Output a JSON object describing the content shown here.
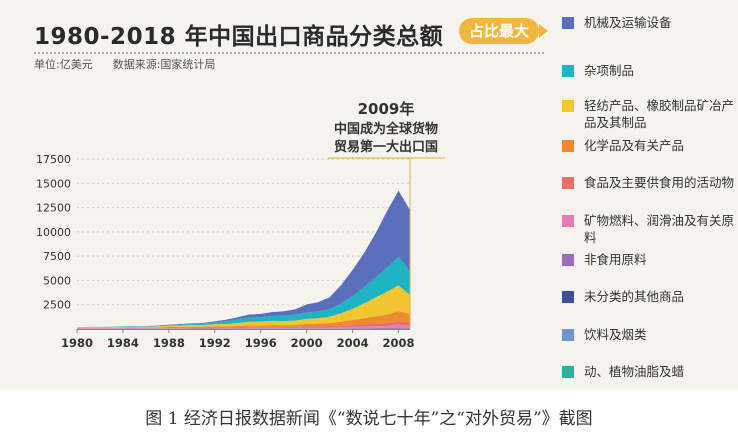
{
  "header": {
    "title": "1980-2018 年中国出口商品分类总额",
    "unit": "单位:亿美元",
    "source": "数据来源:国家统计局",
    "badge": "占比最大"
  },
  "annotation": {
    "line1": "2009年",
    "line2": "中国成为全球货物",
    "line3": "贸易第一大出口国"
  },
  "caption": "图 1  经济日报数据新闻《“数说七十年”之“对外贸易”》截图",
  "colors": {
    "background": "#f4f3ee",
    "badge": "#f2b640"
  },
  "chart_data": {
    "type": "area",
    "stacked": true,
    "title": "1980-2018 年中国出口商品分类总额",
    "ylabel": "",
    "xlabel": "",
    "ylim": [
      0,
      17500
    ],
    "yticks": [
      2500,
      5000,
      7500,
      10000,
      12500,
      15000,
      17500
    ],
    "xticks": [
      1980,
      1984,
      1988,
      1992,
      1996,
      2000,
      2004,
      2008
    ],
    "xlim": [
      1980,
      2009
    ],
    "x": [
      1980,
      1981,
      1982,
      1983,
      1984,
      1985,
      1986,
      1987,
      1988,
      1989,
      1990,
      1991,
      1992,
      1993,
      1994,
      1995,
      1996,
      1997,
      1998,
      1999,
      2000,
      2001,
      2002,
      2003,
      2004,
      2005,
      2006,
      2007,
      2008,
      2009
    ],
    "series": [
      {
        "name": "动、植物油脂及蜡",
        "color": "#2bb39b",
        "values": [
          5,
          5,
          5,
          5,
          5,
          5,
          5,
          5,
          5,
          5,
          5,
          5,
          5,
          5,
          5,
          5,
          5,
          5,
          5,
          5,
          5,
          5,
          5,
          5,
          5,
          5,
          5,
          5,
          5,
          5
        ]
      },
      {
        "name": "饮料及烟类",
        "color": "#6f95cf",
        "values": [
          5,
          5,
          5,
          5,
          5,
          5,
          5,
          5,
          5,
          5,
          5,
          5,
          5,
          5,
          5,
          10,
          10,
          10,
          10,
          10,
          10,
          10,
          10,
          10,
          10,
          10,
          10,
          10,
          15,
          15
        ]
      },
      {
        "name": "未分类的其他商品",
        "color": "#3b4f9c",
        "values": [
          5,
          5,
          5,
          5,
          5,
          5,
          5,
          5,
          5,
          5,
          5,
          5,
          5,
          5,
          5,
          10,
          10,
          10,
          10,
          10,
          10,
          10,
          10,
          10,
          10,
          10,
          10,
          10,
          10,
          10
        ]
      },
      {
        "name": "非食用原料",
        "color": "#9a6cc4",
        "values": [
          15,
          15,
          15,
          15,
          20,
          20,
          20,
          25,
          30,
          30,
          35,
          35,
          35,
          30,
          40,
          45,
          40,
          40,
          35,
          40,
          45,
          40,
          45,
          50,
          60,
          70,
          80,
          90,
          110,
          80
        ]
      },
      {
        "name": "矿物燃料、润滑油及有关原料",
        "color": "#e97cb6",
        "values": [
          40,
          45,
          50,
          45,
          60,
          70,
          40,
          45,
          45,
          50,
          55,
          50,
          50,
          40,
          40,
          55,
          60,
          70,
          50,
          45,
          80,
          85,
          85,
          110,
          145,
          175,
          175,
          200,
          320,
          200
        ]
      },
      {
        "name": "食品及主要供食用的活动物",
        "color": "#ec6c6c",
        "values": [
          30,
          30,
          30,
          30,
          35,
          40,
          45,
          50,
          60,
          70,
          70,
          75,
          85,
          90,
          100,
          105,
          100,
          110,
          105,
          105,
          120,
          130,
          150,
          180,
          190,
          220,
          255,
          300,
          330,
          330
        ]
      },
      {
        "name": "化学品及有关产品",
        "color": "#ee8a30",
        "values": [
          20,
          20,
          20,
          25,
          25,
          30,
          30,
          40,
          50,
          55,
          60,
          70,
          80,
          90,
          110,
          150,
          150,
          170,
          190,
          200,
          250,
          275,
          310,
          400,
          510,
          630,
          760,
          870,
          1050,
          900
        ]
      },
      {
        "name": "轻纺产品、橡胶制品矿冶产品及其制品",
        "color": "#f2c62f",
        "values": [
          40,
          50,
          50,
          55,
          60,
          60,
          80,
          100,
          120,
          140,
          160,
          170,
          220,
          250,
          300,
          360,
          380,
          420,
          420,
          450,
          520,
          550,
          650,
          850,
          1150,
          1500,
          1950,
          2350,
          2650,
          1950
        ]
      },
      {
        "name": "杂项制品",
        "color": "#1fb4c4",
        "values": [
          20,
          30,
          30,
          35,
          40,
          40,
          50,
          60,
          80,
          100,
          120,
          150,
          200,
          300,
          400,
          450,
          450,
          500,
          550,
          600,
          650,
          700,
          800,
          1000,
          1300,
          1700,
          2050,
          2500,
          2950,
          2450
        ]
      },
      {
        "name": "机械及运输设备",
        "color": "#5a70bd",
        "values": [
          5,
          10,
          10,
          15,
          15,
          20,
          20,
          30,
          40,
          50,
          60,
          70,
          100,
          150,
          200,
          300,
          350,
          400,
          450,
          550,
          850,
          950,
          1200,
          1900,
          2700,
          3500,
          4550,
          5800,
          6800,
          6300
        ]
      }
    ],
    "annotation_year": 2009
  },
  "legend": [
    {
      "label": "机械及运输设备",
      "color": "#5a70bd"
    },
    {
      "label": "杂项制品",
      "color": "#1fb4c4"
    },
    {
      "label": "轻纺产品、橡胶制品矿冶产品及其制品",
      "color": "#f2c62f"
    },
    {
      "label": "化学品及有关产品",
      "color": "#ee8a30"
    },
    {
      "label": "食品及主要供食用的活动物",
      "color": "#ec6c6c"
    },
    {
      "label": "矿物燃料、润滑油及有关原料",
      "color": "#e97cb6"
    },
    {
      "label": "非食用原料",
      "color": "#9a6cc4"
    },
    {
      "label": "未分类的其他商品",
      "color": "#3b4f9c"
    },
    {
      "label": "饮料及烟类",
      "color": "#6f95cf"
    },
    {
      "label": "动、植物油脂及蜡",
      "color": "#2bb39b"
    }
  ]
}
